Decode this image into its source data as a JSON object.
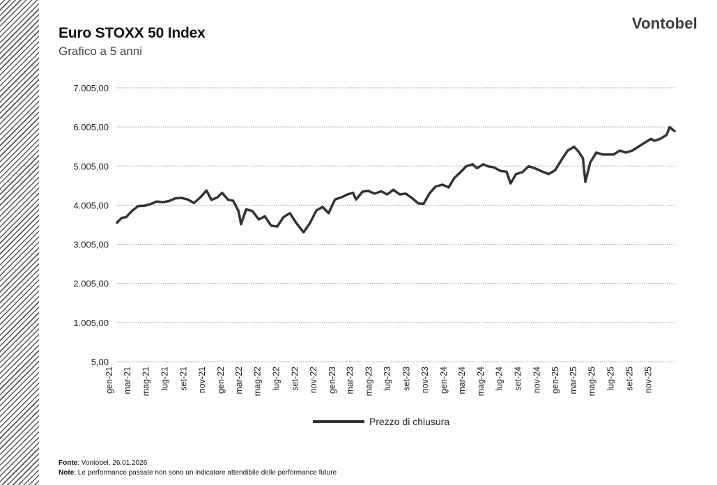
{
  "header": {
    "title": "Euro STOXX 50 Index",
    "subtitle": "Grafico a 5 anni",
    "brand": "Vontobel"
  },
  "footer": {
    "source_label": "Fonte",
    "source_text": ": Vontobel, 26.01.2026",
    "note_label": "Note",
    "note_text": ": Le performance passate non sono un indicatore attendibile delle performance future"
  },
  "chart_data": {
    "type": "line",
    "title": "Euro STOXX 50 Index",
    "subtitle": "Grafico a 5 anni",
    "xlabel": "",
    "ylabel": "",
    "ylim": [
      5,
      7005
    ],
    "yticks": [
      5,
      1005,
      2005,
      3005,
      4005,
      5005,
      6005,
      7005
    ],
    "ytick_labels": [
      "5,00",
      "1.005,00",
      "2.005,00",
      "3.005,00",
      "4.005,00",
      "5.005,00",
      "6.005,00",
      "7.005,00"
    ],
    "xticks": [
      "gen-21",
      "mar-21",
      "mag-21",
      "lug-21",
      "set-21",
      "nov-21",
      "gen-22",
      "mar-22",
      "mag-22",
      "lug-22",
      "set-22",
      "nov-22",
      "gen-23",
      "mar-23",
      "mag-23",
      "lug-23",
      "set-23",
      "nov-23",
      "gen-24",
      "mar-24",
      "mag-24",
      "lug-24",
      "set-24",
      "nov-24",
      "gen-25",
      "mar-25",
      "mag-25",
      "lug-25",
      "set-25",
      "nov-25"
    ],
    "xlim": [
      "2021-01-26",
      "2026-01-26"
    ],
    "grid": true,
    "legend_position": "bottom",
    "colors": {
      "line": "#333333",
      "grid": "#9a9a9a"
    },
    "series": [
      {
        "name": "Prezzo di chiusura",
        "x": [
          "2021-01-26",
          "2021-02-10",
          "2021-02-25",
          "2021-03-15",
          "2021-04-05",
          "2021-04-25",
          "2021-05-15",
          "2021-06-05",
          "2021-06-25",
          "2021-07-15",
          "2021-08-05",
          "2021-08-25",
          "2021-09-15",
          "2021-10-05",
          "2021-10-25",
          "2021-11-15",
          "2021-12-01",
          "2021-12-20",
          "2022-01-05",
          "2022-01-25",
          "2022-02-10",
          "2022-02-28",
          "2022-03-08",
          "2022-03-25",
          "2022-04-15",
          "2022-05-05",
          "2022-05-25",
          "2022-06-15",
          "2022-07-05",
          "2022-07-25",
          "2022-08-15",
          "2022-09-05",
          "2022-09-29",
          "2022-10-20",
          "2022-11-10",
          "2022-11-30",
          "2022-12-20",
          "2023-01-10",
          "2023-02-01",
          "2023-02-20",
          "2023-03-10",
          "2023-03-20",
          "2023-04-10",
          "2023-04-28",
          "2023-05-20",
          "2023-06-10",
          "2023-06-30",
          "2023-07-20",
          "2023-08-10",
          "2023-08-30",
          "2023-09-20",
          "2023-10-10",
          "2023-10-27",
          "2023-11-15",
          "2023-12-05",
          "2023-12-28",
          "2024-01-17",
          "2024-02-05",
          "2024-02-25",
          "2024-03-15",
          "2024-04-05",
          "2024-04-19",
          "2024-05-10",
          "2024-05-25",
          "2024-06-14",
          "2024-07-05",
          "2024-07-25",
          "2024-08-07",
          "2024-08-25",
          "2024-09-15",
          "2024-10-05",
          "2024-10-25",
          "2024-11-20",
          "2024-12-10",
          "2024-12-31",
          "2025-01-20",
          "2025-02-10",
          "2025-03-03",
          "2025-03-20",
          "2025-04-01",
          "2025-04-09",
          "2025-04-25",
          "2025-05-15",
          "2025-06-05",
          "2025-06-20",
          "2025-07-10",
          "2025-07-31",
          "2025-08-20",
          "2025-09-10",
          "2025-09-30",
          "2025-10-20",
          "2025-11-10",
          "2025-11-21",
          "2025-12-10",
          "2025-12-31",
          "2026-01-10",
          "2026-01-16",
          "2026-01-26"
        ],
        "values": [
          3560,
          3680,
          3700,
          3850,
          3980,
          3990,
          4030,
          4100,
          4080,
          4110,
          4180,
          4190,
          4150,
          4060,
          4200,
          4380,
          4140,
          4200,
          4320,
          4140,
          4120,
          3850,
          3520,
          3900,
          3850,
          3640,
          3720,
          3480,
          3460,
          3700,
          3800,
          3550,
          3310,
          3550,
          3870,
          3960,
          3800,
          4150,
          4210,
          4280,
          4320,
          4150,
          4350,
          4370,
          4300,
          4360,
          4280,
          4400,
          4280,
          4300,
          4180,
          4050,
          4040,
          4300,
          4480,
          4530,
          4460,
          4700,
          4850,
          5000,
          5050,
          4950,
          5050,
          5000,
          4970,
          4880,
          4860,
          4560,
          4800,
          4850,
          5000,
          4950,
          4860,
          4800,
          4900,
          5150,
          5400,
          5500,
          5350,
          5200,
          4600,
          5100,
          5350,
          5300,
          5300,
          5300,
          5400,
          5350,
          5400,
          5500,
          5600,
          5700,
          5650,
          5700,
          5800,
          6000,
          5960,
          5900
        ]
      }
    ]
  }
}
